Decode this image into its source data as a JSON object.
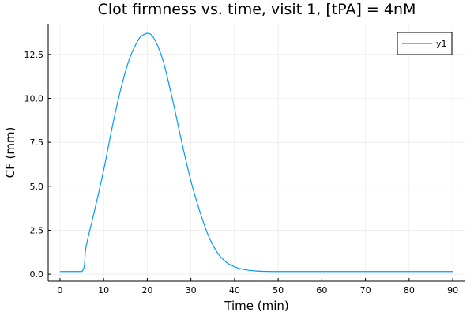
{
  "chart_data": {
    "type": "line",
    "title": "Clot firmness vs. time, visit 1, [tPA] = 4nM",
    "xlabel": "Time (min)",
    "ylabel": "CF (mm)",
    "xlim": [
      -2.7,
      92.7
    ],
    "ylim": [
      -0.4,
      14.2
    ],
    "xticks": [
      0,
      10,
      20,
      30,
      40,
      50,
      60,
      70,
      80,
      90
    ],
    "xtick_labels": [
      "0",
      "10",
      "20",
      "30",
      "40",
      "50",
      "60",
      "70",
      "80",
      "90"
    ],
    "yticks": [
      0.0,
      2.5,
      5.0,
      7.5,
      10.0,
      12.5
    ],
    "ytick_labels": [
      "0.0",
      "2.5",
      "5.0",
      "7.5",
      "10.0",
      "12.5"
    ],
    "grid": true,
    "legend_position": "top-right",
    "colors": {
      "series": "#009AFA",
      "grid": "#E6E6E6",
      "axis": "#000000"
    },
    "series": [
      {
        "name": "y1",
        "x": [
          0,
          5,
          6,
          8,
          10,
          12,
          14,
          16,
          18,
          19,
          20,
          21,
          22,
          23,
          24,
          26,
          28,
          30,
          32,
          34,
          36,
          38,
          40,
          42,
          45,
          50,
          60,
          70,
          80,
          90
        ],
        "y": [
          0.15,
          0.15,
          1.6,
          3.7,
          5.9,
          8.4,
          10.6,
          12.3,
          13.35,
          13.6,
          13.7,
          13.6,
          13.2,
          12.6,
          11.8,
          9.7,
          7.4,
          5.3,
          3.6,
          2.2,
          1.25,
          0.7,
          0.42,
          0.27,
          0.18,
          0.15,
          0.15,
          0.15,
          0.15,
          0.15
        ]
      }
    ]
  }
}
